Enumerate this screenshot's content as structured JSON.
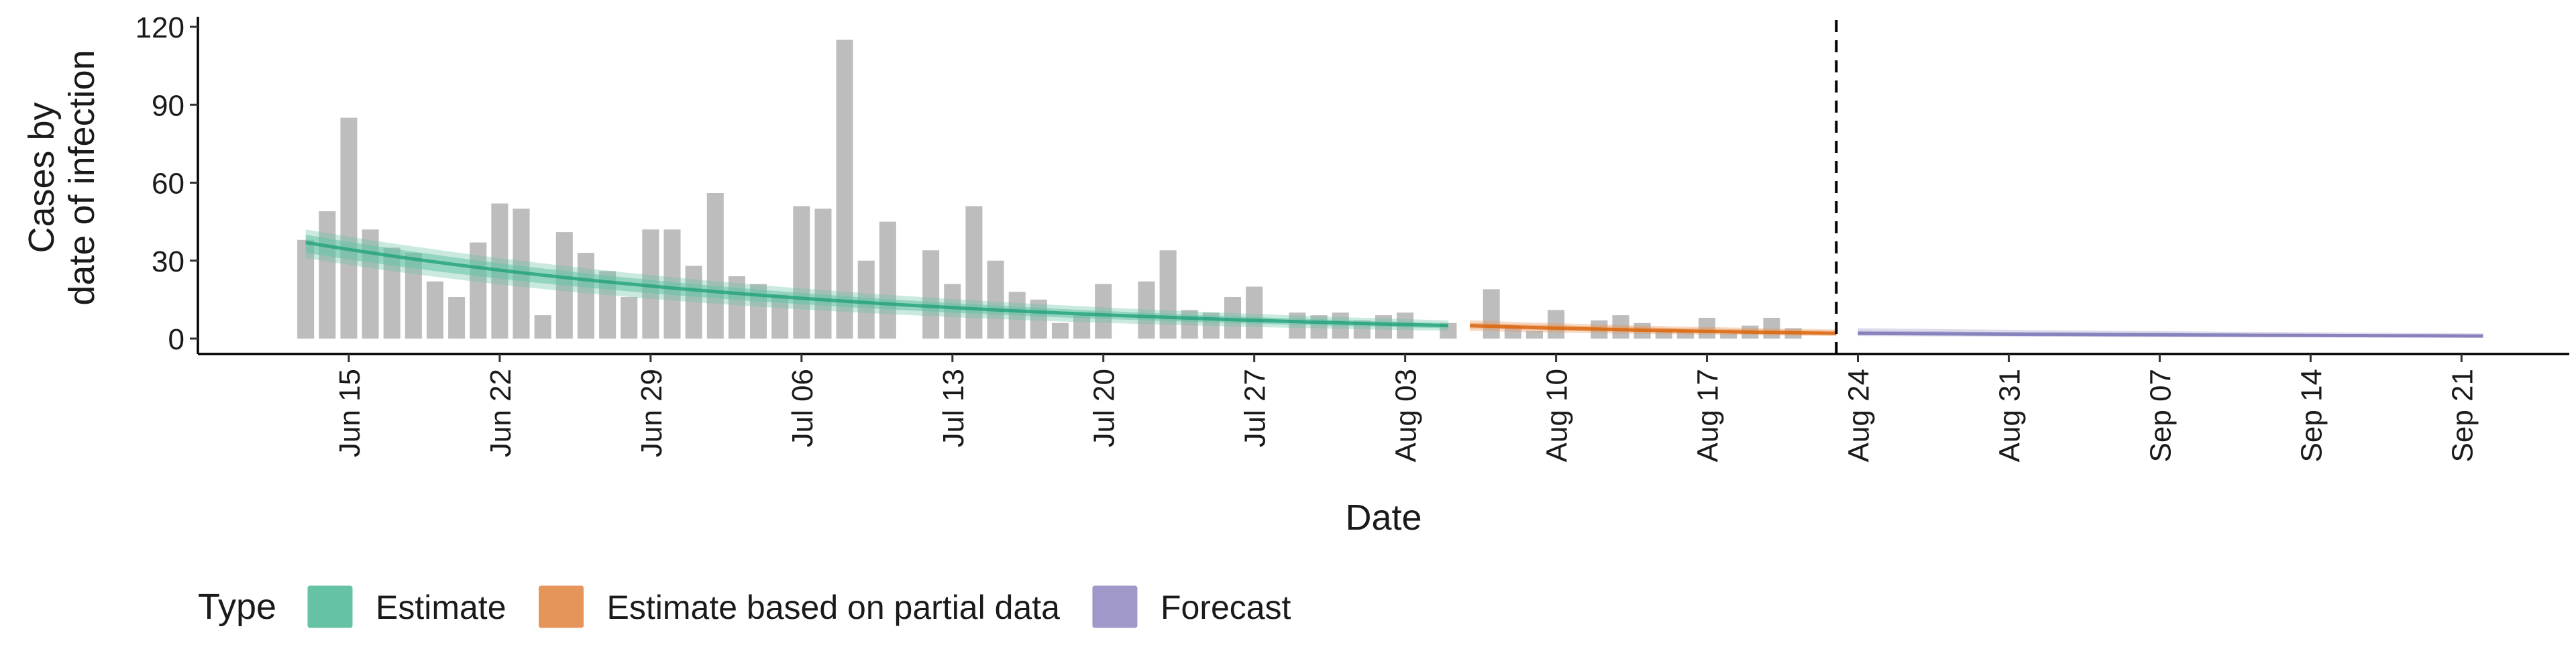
{
  "chart_data": {
    "type": "bar",
    "title": "",
    "xlabel": "Date",
    "ylabel": [
      "Cases by",
      "date of infection"
    ],
    "ylim": [
      0,
      120
    ],
    "yticks": [
      0,
      30,
      60,
      90,
      120
    ],
    "x_ticks": [
      "Jun 15",
      "Jun 22",
      "Jun 29",
      "Jul 06",
      "Jul 13",
      "Jul 20",
      "Jul 27",
      "Aug 03",
      "Aug 10",
      "Aug 17",
      "Aug 24",
      "Aug 31",
      "Sep 07",
      "Sep 14",
      "Sep 21"
    ],
    "x_range": [
      "2020-06-08",
      "2020-09-26"
    ],
    "forecast_line_date": "2020-08-23",
    "legend": {
      "title": "Type",
      "position": "bottom",
      "entries": [
        {
          "label": "Estimate",
          "color": "#66c2a5"
        },
        {
          "label": "Estimate based on partial data",
          "color": "#e6955a"
        },
        {
          "label": "Forecast",
          "color": "#9f98c8"
        }
      ]
    },
    "bar_color": "#bdbdbd",
    "bars": {
      "start": "2020-06-13",
      "values": [
        38,
        49,
        85,
        42,
        35,
        33,
        22,
        16,
        37,
        52,
        50,
        9,
        41,
        33,
        26,
        16,
        42,
        42,
        28,
        56,
        24,
        21,
        17,
        51,
        50,
        115,
        30,
        45,
        0,
        34,
        21,
        51,
        30,
        18,
        15,
        6,
        9,
        21,
        0,
        22,
        34,
        11,
        10,
        16,
        20,
        0,
        10,
        9,
        10,
        7,
        9,
        10,
        0,
        6,
        0,
        19,
        5,
        3,
        11,
        0,
        7,
        9,
        6,
        3,
        3,
        8,
        2,
        5,
        8,
        4
      ]
    },
    "series": [
      {
        "name": "Estimate",
        "color": "#1b9e77",
        "band_color": "#66c2a5",
        "start": "2020-06-13",
        "end": "2020-08-05",
        "values_start": 37,
        "values_end": 5,
        "band_inner_start": [
          33,
          40
        ],
        "band_inner_end": [
          4,
          6
        ],
        "band_outer_start": [
          31,
          42
        ],
        "band_outer_end": [
          3,
          7
        ]
      },
      {
        "name": "Estimate based on partial data",
        "color": "#d95f02",
        "band_color": "#e6955a",
        "start": "2020-08-06",
        "end": "2020-08-23",
        "values_start": 5,
        "values_end": 2,
        "band_inner_start": [
          4,
          6
        ],
        "band_inner_end": [
          1.5,
          3
        ],
        "band_outer_start": [
          3,
          7
        ],
        "band_outer_end": [
          1,
          3.5
        ]
      },
      {
        "name": "Forecast",
        "color": "#7570b3",
        "band_color": "#9f98c8",
        "start": "2020-08-24",
        "end": "2020-09-22",
        "values_start": 2,
        "values_end": 1,
        "band_inner_start": [
          1.5,
          3
        ],
        "band_inner_end": [
          0.5,
          1.5
        ],
        "band_outer_start": [
          1,
          4
        ],
        "band_outer_end": [
          0.3,
          2
        ]
      }
    ]
  }
}
